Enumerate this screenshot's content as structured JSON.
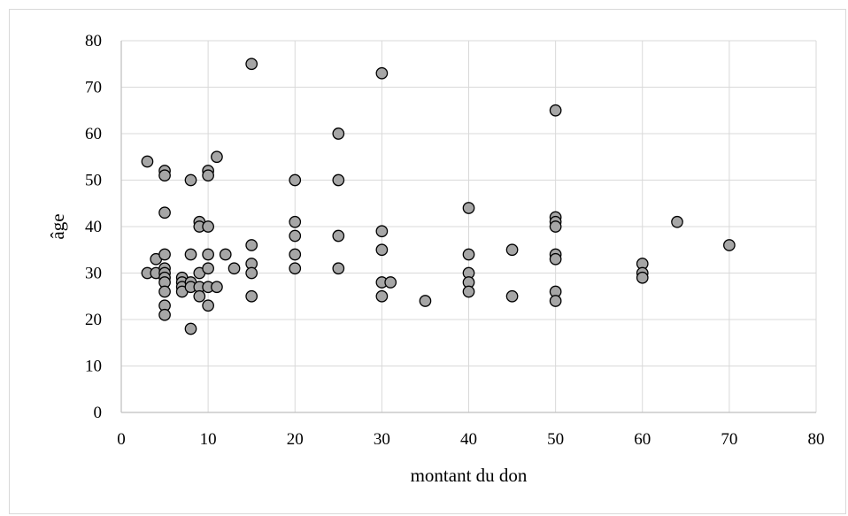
{
  "chart_data": {
    "type": "scatter",
    "title": "",
    "xlabel": "montant du don",
    "ylabel": "âge",
    "xlim": [
      0,
      80
    ],
    "ylim": [
      0,
      80
    ],
    "x_ticks": [
      "0",
      "10",
      "20",
      "30",
      "40",
      "50",
      "60",
      "70",
      "80"
    ],
    "y_ticks": [
      "0",
      "10",
      "20",
      "30",
      "40",
      "50",
      "60",
      "70",
      "80"
    ],
    "grid": true,
    "legend": "none",
    "colors": {
      "marker_fill": "#a6a6a6",
      "marker_stroke": "#000000",
      "grid": "#d9d9d9",
      "axis": "#bfbfbf"
    },
    "points": [
      {
        "x": 3,
        "y": 54
      },
      {
        "x": 3,
        "y": 30
      },
      {
        "x": 4,
        "y": 30
      },
      {
        "x": 4,
        "y": 33
      },
      {
        "x": 5,
        "y": 52
      },
      {
        "x": 5,
        "y": 51
      },
      {
        "x": 5,
        "y": 43
      },
      {
        "x": 5,
        "y": 34
      },
      {
        "x": 5,
        "y": 31
      },
      {
        "x": 5,
        "y": 30
      },
      {
        "x": 5,
        "y": 29
      },
      {
        "x": 5,
        "y": 28
      },
      {
        "x": 5,
        "y": 26
      },
      {
        "x": 5,
        "y": 23
      },
      {
        "x": 5,
        "y": 21
      },
      {
        "x": 7,
        "y": 29
      },
      {
        "x": 7,
        "y": 28
      },
      {
        "x": 7,
        "y": 27
      },
      {
        "x": 7,
        "y": 26
      },
      {
        "x": 8,
        "y": 50
      },
      {
        "x": 8,
        "y": 34
      },
      {
        "x": 8,
        "y": 28
      },
      {
        "x": 8,
        "y": 27
      },
      {
        "x": 8,
        "y": 18
      },
      {
        "x": 9,
        "y": 41
      },
      {
        "x": 9,
        "y": 40
      },
      {
        "x": 9,
        "y": 30
      },
      {
        "x": 9,
        "y": 27
      },
      {
        "x": 9,
        "y": 25
      },
      {
        "x": 10,
        "y": 52
      },
      {
        "x": 10,
        "y": 51
      },
      {
        "x": 10,
        "y": 40
      },
      {
        "x": 10,
        "y": 34
      },
      {
        "x": 10,
        "y": 31
      },
      {
        "x": 10,
        "y": 27
      },
      {
        "x": 10,
        "y": 23
      },
      {
        "x": 11,
        "y": 55
      },
      {
        "x": 11,
        "y": 27
      },
      {
        "x": 12,
        "y": 34
      },
      {
        "x": 13,
        "y": 31
      },
      {
        "x": 15,
        "y": 75
      },
      {
        "x": 15,
        "y": 36
      },
      {
        "x": 15,
        "y": 32
      },
      {
        "x": 15,
        "y": 30
      },
      {
        "x": 15,
        "y": 25
      },
      {
        "x": 20,
        "y": 50
      },
      {
        "x": 20,
        "y": 41
      },
      {
        "x": 20,
        "y": 38
      },
      {
        "x": 20,
        "y": 34
      },
      {
        "x": 20,
        "y": 31
      },
      {
        "x": 25,
        "y": 60
      },
      {
        "x": 25,
        "y": 50
      },
      {
        "x": 25,
        "y": 38
      },
      {
        "x": 25,
        "y": 31
      },
      {
        "x": 30,
        "y": 73
      },
      {
        "x": 30,
        "y": 39
      },
      {
        "x": 30,
        "y": 35
      },
      {
        "x": 30,
        "y": 28
      },
      {
        "x": 30,
        "y": 25
      },
      {
        "x": 31,
        "y": 28
      },
      {
        "x": 35,
        "y": 24
      },
      {
        "x": 40,
        "y": 44
      },
      {
        "x": 40,
        "y": 34
      },
      {
        "x": 40,
        "y": 30
      },
      {
        "x": 40,
        "y": 28
      },
      {
        "x": 40,
        "y": 26
      },
      {
        "x": 45,
        "y": 35
      },
      {
        "x": 45,
        "y": 25
      },
      {
        "x": 50,
        "y": 65
      },
      {
        "x": 50,
        "y": 42
      },
      {
        "x": 50,
        "y": 41
      },
      {
        "x": 50,
        "y": 40
      },
      {
        "x": 50,
        "y": 34
      },
      {
        "x": 50,
        "y": 33
      },
      {
        "x": 50,
        "y": 26
      },
      {
        "x": 50,
        "y": 24
      },
      {
        "x": 60,
        "y": 32
      },
      {
        "x": 60,
        "y": 30
      },
      {
        "x": 60,
        "y": 29
      },
      {
        "x": 64,
        "y": 41
      },
      {
        "x": 70,
        "y": 36
      }
    ]
  }
}
